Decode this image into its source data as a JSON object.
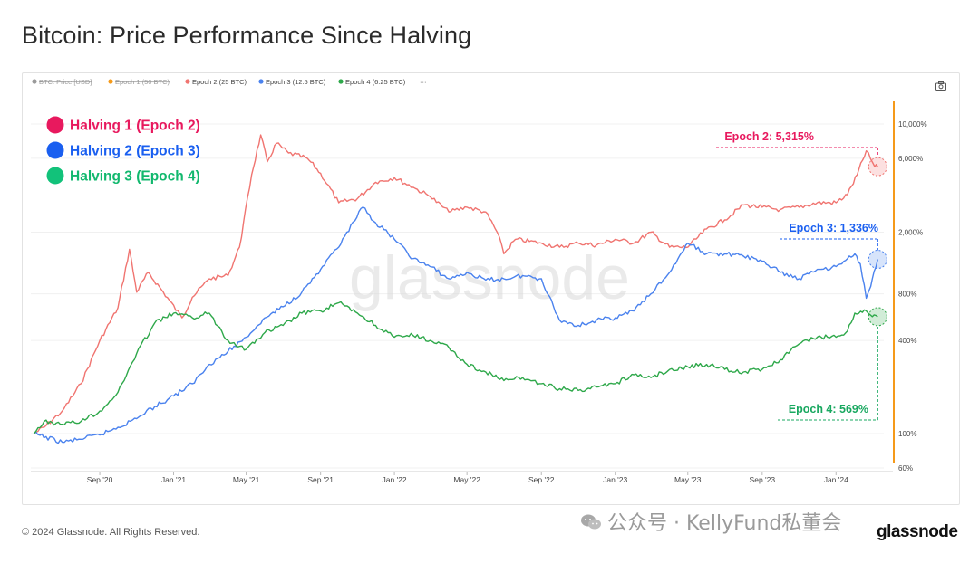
{
  "page": {
    "title": "Bitcoin: Price Performance Since Halving",
    "copyright": "© 2024 Glassnode. All Rights Reserved.",
    "brand": "glassnode",
    "chart_watermark": "glassnode",
    "cn_watermark": "公众号 · KellyFund私董会"
  },
  "colors": {
    "epoch2": "#f07470",
    "epoch3": "#4a82ee",
    "epoch4": "#2ea84a",
    "halving1": "#e8195e",
    "halving2": "#1a5ff0",
    "halving3": "#12c27a",
    "cutoff": "#f59a1a"
  },
  "icons": [
    "camera-icon",
    "wechat-icon"
  ],
  "chart_data": {
    "type": "line",
    "title": "Bitcoin: Price Performance Since Halving",
    "y_scale": "log",
    "ylim": [
      60,
      14000
    ],
    "x_ticks": [
      "Sep '20",
      "Jan '21",
      "May '21",
      "Sep '21",
      "Jan '22",
      "May '22",
      "Sep '22",
      "Jan '23",
      "May '23",
      "Sep '23",
      "Jan '24"
    ],
    "y_ticks": [
      "60%",
      "100%",
      "400%",
      "800%",
      "2,000%",
      "6,000%",
      "10,000%"
    ],
    "y_tick_values": [
      60,
      100,
      400,
      800,
      2000,
      6000,
      10000
    ],
    "legend": [
      {
        "label": "BTC: Price [USD]",
        "hidden": true
      },
      {
        "label": "Epoch 1 (50 BTC)",
        "hidden": true
      },
      {
        "label": "Epoch 2 (25 BTC)",
        "hidden": false
      },
      {
        "label": "Epoch 3 (12.5 BTC)",
        "hidden": false
      },
      {
        "label": "Epoch 4 (6.25 BTC)",
        "hidden": false
      },
      {
        "label": "···",
        "hidden": false
      }
    ],
    "halving_labels": [
      "Halving 1 (Epoch 2)",
      "Halving 2 (Epoch 3)",
      "Halving 3 (Epoch 4)"
    ],
    "series": [
      {
        "name": "Epoch 2 (25 BTC)",
        "points": [
          [
            "2020-05-15",
            100
          ],
          [
            "2020-06-01",
            110
          ],
          [
            "2020-07-01",
            140
          ],
          [
            "2020-08-01",
            210
          ],
          [
            "2020-09-01",
            400
          ],
          [
            "2020-10-01",
            650
          ],
          [
            "2020-10-20",
            1550
          ],
          [
            "2020-11-01",
            820
          ],
          [
            "2020-11-20",
            1100
          ],
          [
            "2020-12-15",
            820
          ],
          [
            "2021-01-15",
            560
          ],
          [
            "2021-02-01",
            760
          ],
          [
            "2021-03-01",
            1000
          ],
          [
            "2021-04-01",
            1050
          ],
          [
            "2021-04-20",
            1600
          ],
          [
            "2021-05-10",
            4700
          ],
          [
            "2021-05-25",
            8500
          ],
          [
            "2021-06-05",
            5700
          ],
          [
            "2021-06-20",
            7500
          ],
          [
            "2021-07-10",
            6500
          ],
          [
            "2021-08-10",
            6000
          ],
          [
            "2021-09-01",
            4800
          ],
          [
            "2021-10-01",
            3100
          ],
          [
            "2021-11-01",
            3300
          ],
          [
            "2021-12-01",
            4200
          ],
          [
            "2022-01-01",
            4500
          ],
          [
            "2022-02-01",
            3900
          ],
          [
            "2022-03-01",
            3400
          ],
          [
            "2022-04-01",
            2700
          ],
          [
            "2022-05-01",
            2900
          ],
          [
            "2022-06-01",
            2700
          ],
          [
            "2022-06-20",
            2000
          ],
          [
            "2022-07-01",
            1450
          ],
          [
            "2022-07-20",
            1800
          ],
          [
            "2022-09-01",
            1700
          ],
          [
            "2022-10-01",
            1600
          ],
          [
            "2022-11-01",
            1700
          ],
          [
            "2022-12-01",
            1650
          ],
          [
            "2023-01-01",
            1800
          ],
          [
            "2023-02-01",
            1700
          ],
          [
            "2023-03-01",
            2000
          ],
          [
            "2023-04-01",
            1600
          ],
          [
            "2023-05-01",
            1600
          ],
          [
            "2023-06-01",
            2100
          ],
          [
            "2023-07-01",
            2400
          ],
          [
            "2023-08-01",
            3000
          ],
          [
            "2023-09-01",
            2900
          ],
          [
            "2023-10-01",
            2800
          ],
          [
            "2023-11-01",
            2900
          ],
          [
            "2023-12-01",
            3100
          ],
          [
            "2024-01-01",
            3100
          ],
          [
            "2024-01-20",
            3500
          ],
          [
            "2024-02-05",
            4700
          ],
          [
            "2024-02-20",
            6700
          ],
          [
            "2024-03-05",
            5300
          ],
          [
            "2024-03-10",
            5300
          ]
        ],
        "end_label": "Epoch 2: 5,315%"
      },
      {
        "name": "Epoch 3 (12.5 BTC)",
        "points": [
          [
            "2020-05-15",
            100
          ],
          [
            "2020-07-01",
            88
          ],
          [
            "2020-08-01",
            92
          ],
          [
            "2020-09-01",
            98
          ],
          [
            "2020-10-01",
            110
          ],
          [
            "2020-11-01",
            125
          ],
          [
            "2020-12-01",
            150
          ],
          [
            "2021-01-01",
            175
          ],
          [
            "2021-02-01",
            210
          ],
          [
            "2021-03-01",
            280
          ],
          [
            "2021-04-01",
            340
          ],
          [
            "2021-05-01",
            420
          ],
          [
            "2021-06-01",
            560
          ],
          [
            "2021-07-01",
            660
          ],
          [
            "2021-08-01",
            820
          ],
          [
            "2021-09-01",
            1150
          ],
          [
            "2021-10-01",
            1600
          ],
          [
            "2021-11-10",
            2900
          ],
          [
            "2021-12-01",
            2300
          ],
          [
            "2022-01-01",
            1800
          ],
          [
            "2022-02-01",
            1350
          ],
          [
            "2022-03-01",
            1200
          ],
          [
            "2022-04-01",
            1000
          ],
          [
            "2022-05-01",
            1100
          ],
          [
            "2022-06-01",
            980
          ],
          [
            "2022-07-01",
            1000
          ],
          [
            "2022-08-01",
            1050
          ],
          [
            "2022-09-01",
            1000
          ],
          [
            "2022-10-01",
            540
          ],
          [
            "2022-11-01",
            500
          ],
          [
            "2022-12-01",
            540
          ],
          [
            "2023-01-01",
            560
          ],
          [
            "2023-02-01",
            620
          ],
          [
            "2023-03-01",
            800
          ],
          [
            "2023-04-01",
            1100
          ],
          [
            "2023-05-01",
            1700
          ],
          [
            "2023-06-01",
            1450
          ],
          [
            "2023-07-01",
            1450
          ],
          [
            "2023-08-01",
            1400
          ],
          [
            "2023-09-01",
            1300
          ],
          [
            "2023-10-01",
            1100
          ],
          [
            "2023-11-01",
            1000
          ],
          [
            "2023-12-01",
            1150
          ],
          [
            "2024-01-01",
            1200
          ],
          [
            "2024-01-20",
            1350
          ],
          [
            "2024-02-01",
            1450
          ],
          [
            "2024-02-10",
            1250
          ],
          [
            "2024-02-20",
            750
          ],
          [
            "2024-02-25",
            850
          ],
          [
            "2024-03-01",
            1000
          ],
          [
            "2024-03-10",
            1336
          ]
        ],
        "end_label": "Epoch 3: 1,336%"
      },
      {
        "name": "Epoch 4 (6.25 BTC)",
        "points": [
          [
            "2020-05-15",
            100
          ],
          [
            "2020-06-01",
            120
          ],
          [
            "2020-07-01",
            115
          ],
          [
            "2020-08-01",
            120
          ],
          [
            "2020-09-01",
            140
          ],
          [
            "2020-10-01",
            185
          ],
          [
            "2020-11-01",
            330
          ],
          [
            "2020-12-01",
            520
          ],
          [
            "2021-01-01",
            600
          ],
          [
            "2021-02-01",
            560
          ],
          [
            "2021-03-01",
            600
          ],
          [
            "2021-04-01",
            400
          ],
          [
            "2021-05-01",
            350
          ],
          [
            "2021-06-01",
            450
          ],
          [
            "2021-07-01",
            500
          ],
          [
            "2021-08-01",
            600
          ],
          [
            "2021-09-01",
            620
          ],
          [
            "2021-10-01",
            700
          ],
          [
            "2021-11-01",
            600
          ],
          [
            "2021-12-01",
            500
          ],
          [
            "2022-01-01",
            420
          ],
          [
            "2022-02-01",
            430
          ],
          [
            "2022-03-01",
            400
          ],
          [
            "2022-04-01",
            360
          ],
          [
            "2022-05-01",
            280
          ],
          [
            "2022-06-01",
            250
          ],
          [
            "2022-07-01",
            220
          ],
          [
            "2022-08-01",
            230
          ],
          [
            "2022-09-01",
            210
          ],
          [
            "2022-10-01",
            195
          ],
          [
            "2022-11-01",
            190
          ],
          [
            "2022-12-01",
            200
          ],
          [
            "2023-01-01",
            210
          ],
          [
            "2023-02-01",
            240
          ],
          [
            "2023-03-01",
            230
          ],
          [
            "2023-04-01",
            260
          ],
          [
            "2023-05-01",
            270
          ],
          [
            "2023-06-01",
            280
          ],
          [
            "2023-07-01",
            260
          ],
          [
            "2023-08-01",
            250
          ],
          [
            "2023-09-01",
            260
          ],
          [
            "2023-10-01",
            300
          ],
          [
            "2023-11-01",
            380
          ],
          [
            "2023-12-01",
            420
          ],
          [
            "2024-01-01",
            420
          ],
          [
            "2024-01-20",
            460
          ],
          [
            "2024-02-01",
            600
          ],
          [
            "2024-02-20",
            620
          ],
          [
            "2024-03-01",
            569
          ],
          [
            "2024-03-10",
            569
          ]
        ],
        "end_label": "Epoch 4: 569%"
      }
    ]
  }
}
